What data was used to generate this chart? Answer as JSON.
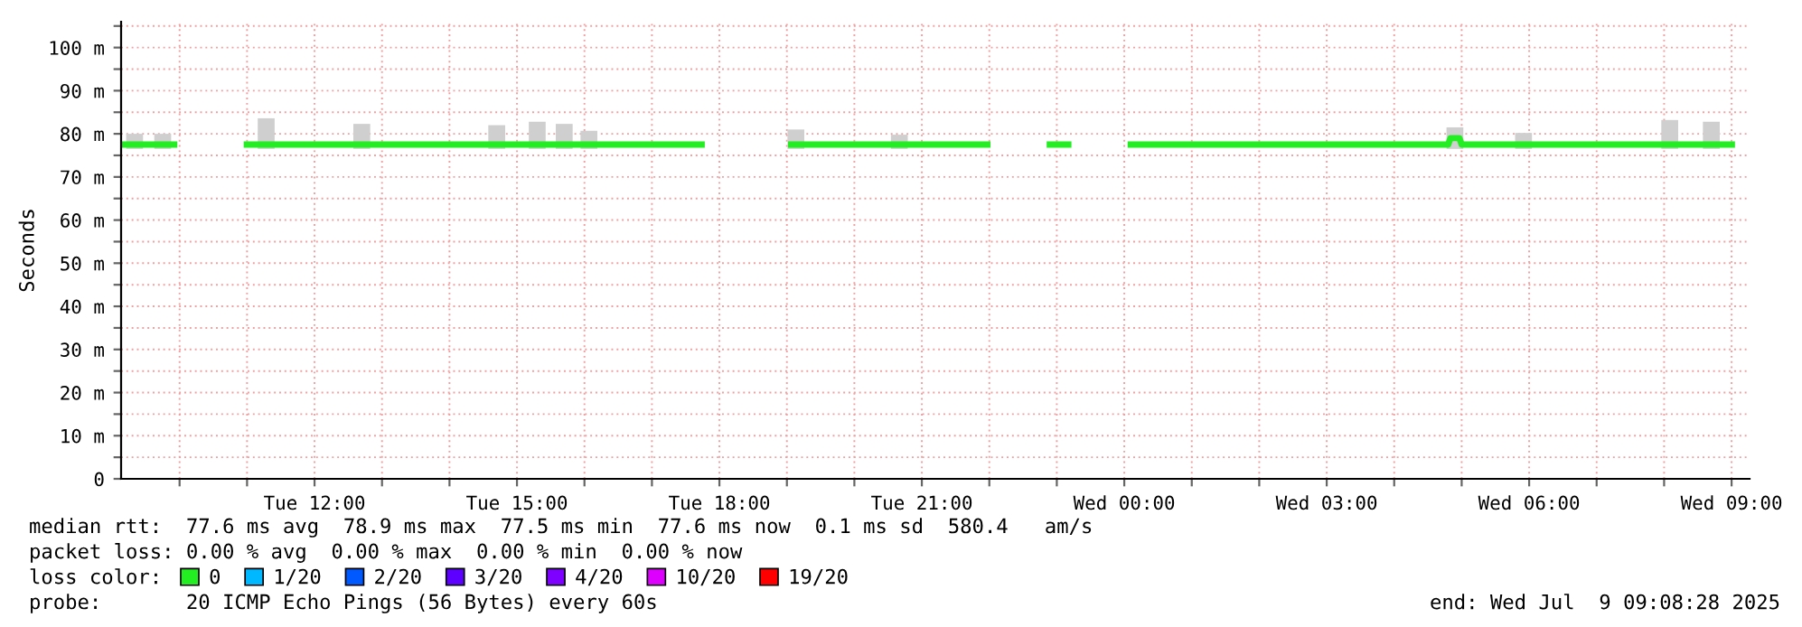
{
  "chart_data": {
    "type": "line",
    "ylabel": "Seconds",
    "xlim": [
      "2025-07-08T09:08",
      "2025-07-09T09:16"
    ],
    "xticks": [
      {
        "value": "2025-07-08T10:00",
        "label": null
      },
      {
        "value": "2025-07-08T11:00",
        "label": null
      },
      {
        "value": "2025-07-08T12:00",
        "label": "Tue 12:00"
      },
      {
        "value": "2025-07-08T13:00",
        "label": null
      },
      {
        "value": "2025-07-08T14:00",
        "label": null
      },
      {
        "value": "2025-07-08T15:00",
        "label": "Tue 15:00"
      },
      {
        "value": "2025-07-08T16:00",
        "label": null
      },
      {
        "value": "2025-07-08T17:00",
        "label": null
      },
      {
        "value": "2025-07-08T18:00",
        "label": "Tue 18:00"
      },
      {
        "value": "2025-07-08T19:00",
        "label": null
      },
      {
        "value": "2025-07-08T20:00",
        "label": null
      },
      {
        "value": "2025-07-08T21:00",
        "label": "Tue 21:00"
      },
      {
        "value": "2025-07-08T22:00",
        "label": null
      },
      {
        "value": "2025-07-08T23:00",
        "label": null
      },
      {
        "value": "2025-07-09T00:00",
        "label": "Wed 00:00"
      },
      {
        "value": "2025-07-09T01:00",
        "label": null
      },
      {
        "value": "2025-07-09T02:00",
        "label": null
      },
      {
        "value": "2025-07-09T03:00",
        "label": "Wed 03:00"
      },
      {
        "value": "2025-07-09T04:00",
        "label": null
      },
      {
        "value": "2025-07-09T05:00",
        "label": null
      },
      {
        "value": "2025-07-09T06:00",
        "label": "Wed 06:00"
      },
      {
        "value": "2025-07-09T07:00",
        "label": null
      },
      {
        "value": "2025-07-09T08:00",
        "label": null
      },
      {
        "value": "2025-07-09T09:00",
        "label": "Wed 09:00"
      }
    ],
    "ylim": [
      0,
      106
    ],
    "yticks": [
      0,
      {
        "value": 5,
        "label": null
      },
      {
        "value": 10,
        "label": "10 m"
      },
      {
        "value": 15,
        "label": null
      },
      {
        "value": 20,
        "label": "20 m"
      },
      {
        "value": 25,
        "label": null
      },
      {
        "value": 30,
        "label": "30 m"
      },
      {
        "value": 35,
        "label": null
      },
      {
        "value": 40,
        "label": "40 m"
      },
      {
        "value": 45,
        "label": null
      },
      {
        "value": 50,
        "label": "50 m"
      },
      {
        "value": 55,
        "label": null
      },
      {
        "value": 60,
        "label": "60 m"
      },
      {
        "value": 65,
        "label": null
      },
      {
        "value": 70,
        "label": "70 m"
      },
      {
        "value": 75,
        "label": null
      },
      {
        "value": 80,
        "label": "80 m"
      },
      {
        "value": 85,
        "label": null
      },
      {
        "value": 90,
        "label": "90 m"
      },
      {
        "value": 95,
        "label": null
      },
      {
        "value": 100,
        "label": "100 m"
      },
      {
        "value": 105,
        "label": null
      }
    ],
    "grid": true,
    "legend": "bottom left",
    "legend_title": "loss color:",
    "series": [
      {
        "type": "bar",
        "color": "#cfcfcf",
        "x": [
          "2025-07-08T09:20",
          "2025-07-08T09:45",
          "2025-07-08T11:17",
          "2025-07-08T12:42",
          "2025-07-08T14:42",
          "2025-07-08T15:18",
          "2025-07-08T15:42",
          "2025-07-08T16:04",
          "2025-07-08T19:08",
          "2025-07-08T20:40",
          "2025-07-09T04:54",
          "2025-07-09T05:55",
          "2025-07-09T08:05",
          "2025-07-09T08:42"
        ],
        "base": [
          76.5,
          76.5,
          76.5,
          76.5,
          76.5,
          76.5,
          76.5,
          76.5,
          76.5,
          76.5,
          76.5,
          76.5,
          76.5,
          76.5
        ],
        "values": [
          3.5,
          3.5,
          7.1,
          5.8,
          5.5,
          6.3,
          5.8,
          4.2,
          4.5,
          3.3,
          5,
          3.7,
          6.7,
          6.3
        ]
      },
      {
        "name": "0",
        "color": "#22ee22",
        "x": [
          "2025-07-08T09:08",
          "2025-07-08T09:58",
          "2025-07-08T10:20",
          "2025-07-08T10:57",
          "2025-07-08T17:47",
          "2025-07-08T18:20",
          "2025-07-08T19:01",
          "2025-07-08T22:01",
          "2025-07-08T22:25",
          "2025-07-08T22:51",
          "2025-07-08T23:13",
          "2025-07-08T23:40",
          "2025-07-09T00:03",
          "2025-07-09T04:48",
          "2025-07-09T04:50",
          "2025-07-09T04:58",
          "2025-07-09T05:00",
          "2025-07-09T09:03"
        ],
        "values": [
          77.5,
          77.5,
          null,
          77.5,
          77.5,
          null,
          77.5,
          77.5,
          null,
          77.5,
          77.5,
          null,
          77.5,
          77.5,
          79,
          79,
          77.5,
          77.5
        ]
      },
      {
        "name": "1/20",
        "color": "#00b8ff"
      },
      {
        "name": "2/20",
        "color": "#0059ff"
      },
      {
        "name": "3/20",
        "color": "#5e00ff"
      },
      {
        "name": "4/20",
        "color": "#7e00ff"
      },
      {
        "name": "10/20",
        "color": "#dd00ff"
      },
      {
        "name": "19/20",
        "color": "#ff0000"
      }
    ],
    "annotations": [
      "median rtt:  77.6 ms avg  78.9 ms max  77.5 ms min  77.6 ms now  0.1 ms sd  580.4   am/s",
      "packet loss: 0.00 % avg  0.00 % max  0.00 % min  0.00 % now",
      "probe:       20 ICMP Echo Pings (56 Bytes) every 60s",
      "end: Wed Jul  9 09:08:28 2025"
    ]
  }
}
